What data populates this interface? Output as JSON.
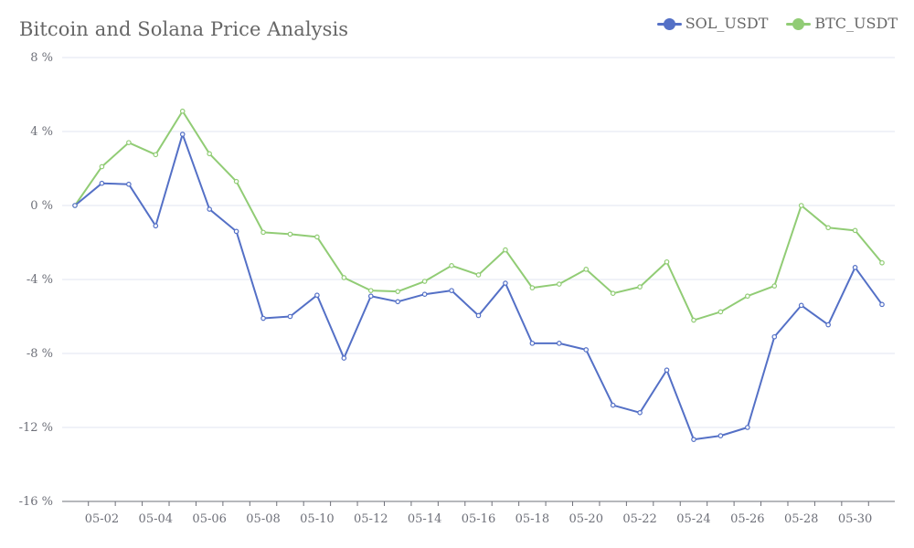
{
  "chart_data": {
    "type": "line",
    "title": "Bitcoin and Solana Price Analysis",
    "xlabel": "",
    "ylabel": "",
    "ylim": [
      -16,
      8
    ],
    "y_ticks": [
      8,
      4,
      0,
      -4,
      -8,
      -12,
      -16
    ],
    "y_tick_suffix": " %",
    "x_tick_labels": [
      "05-02",
      "05-04",
      "05-06",
      "05-08",
      "05-10",
      "05-12",
      "05-14",
      "05-16",
      "05-18",
      "05-20",
      "05-22",
      "05-24",
      "05-26",
      "05-28",
      "05-30"
    ],
    "x": [
      "05-01",
      "05-02",
      "05-03",
      "05-04",
      "05-05",
      "05-06",
      "05-07",
      "05-08",
      "05-09",
      "05-10",
      "05-11",
      "05-12",
      "05-13",
      "05-14",
      "05-15",
      "05-16",
      "05-17",
      "05-18",
      "05-19",
      "05-20",
      "05-21",
      "05-22",
      "05-23",
      "05-24",
      "05-25",
      "05-26",
      "05-27",
      "05-28",
      "05-29",
      "05-30",
      "05-31"
    ],
    "legend_position": "top-right",
    "grid": true,
    "series": [
      {
        "name": "SOL_USDT",
        "color": "#5470c6",
        "values": [
          0,
          1.2,
          1.15,
          -1.1,
          3.85,
          -0.2,
          -1.4,
          -6.1,
          -6.0,
          -4.85,
          -8.25,
          -4.9,
          -5.2,
          -4.8,
          -4.6,
          -5.95,
          -4.2,
          -7.45,
          -7.45,
          -7.8,
          -10.8,
          -11.2,
          -8.9,
          -12.65,
          -12.45,
          -12.0,
          -7.1,
          -5.4,
          -6.45,
          -3.35,
          -5.35
        ]
      },
      {
        "name": "BTC_USDT",
        "color": "#91cc75",
        "values": [
          0,
          2.1,
          3.4,
          2.75,
          5.1,
          2.8,
          1.3,
          -1.45,
          -1.55,
          -1.7,
          -3.9,
          -4.6,
          -4.65,
          -4.1,
          -3.25,
          -3.75,
          -2.4,
          -4.45,
          -4.25,
          -3.45,
          -4.75,
          -4.4,
          -3.05,
          -6.2,
          -5.75,
          -4.9,
          -4.35,
          0,
          -1.2,
          -1.35,
          -3.1
        ]
      }
    ]
  }
}
